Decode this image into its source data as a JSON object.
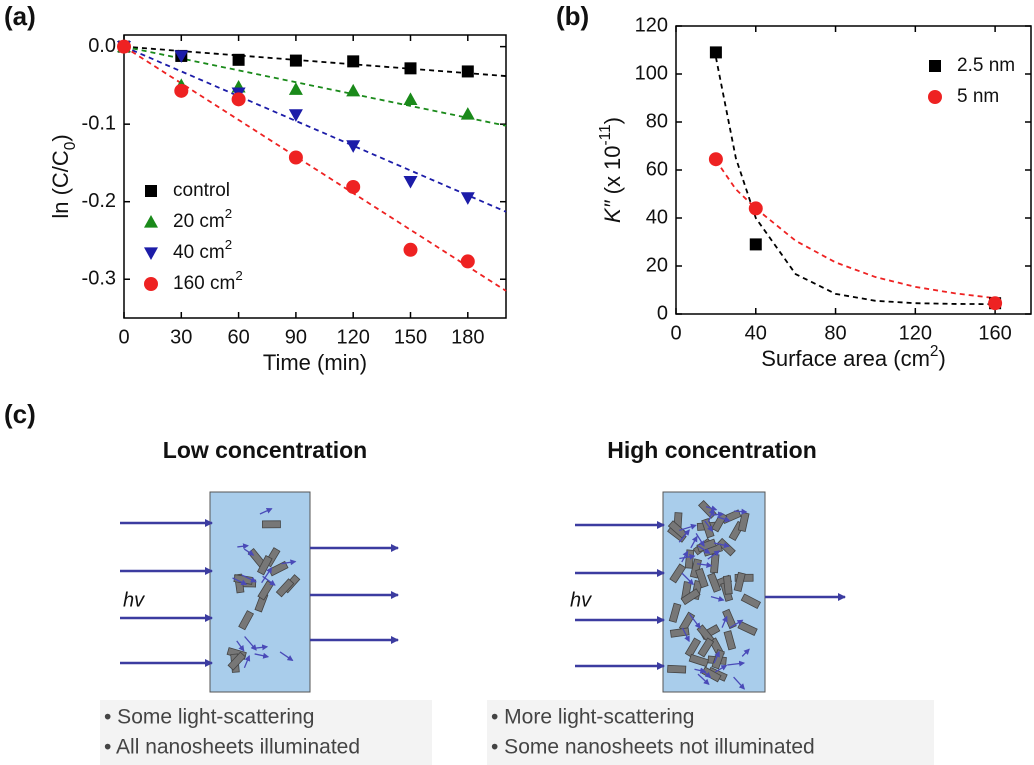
{
  "chart_data": [
    {
      "type": "scatter",
      "panel_label": "(a)",
      "x": [
        0,
        30,
        60,
        90,
        120,
        150,
        180
      ],
      "xlabel": [
        {
          "text": "Time (min)"
        }
      ],
      "ylabel": [
        {
          "text": "ln (C/C"
        },
        {
          "text": "0",
          "style": "sub"
        },
        {
          "text": ")"
        }
      ],
      "xlim": [
        0,
        200
      ],
      "xticks": [
        0,
        30,
        60,
        90,
        120,
        150,
        180
      ],
      "ylim": [
        -0.35,
        0.015
      ],
      "yticks": [
        {
          "value": 0,
          "label": "0.0"
        },
        -0.1,
        -0.2,
        -0.3
      ],
      "legend": "lower left",
      "fit_x": [
        0,
        200
      ],
      "series": [
        {
          "name": [
            {
              "text": "control"
            }
          ],
          "color": "#000000",
          "marker": "square",
          "values": [
            0,
            -0.012,
            -0.017,
            -0.018,
            -0.019,
            -0.028,
            -0.032
          ],
          "fit_values": [
            0,
            -0.038
          ]
        },
        {
          "name": [
            {
              "text": "20 cm"
            },
            {
              "text": "2",
              "style": "sup"
            }
          ],
          "color": "#1a8a1a",
          "marker": "triangle-up",
          "values": [
            0,
            -0.05,
            -0.052,
            -0.055,
            -0.057,
            -0.068,
            -0.087
          ],
          "fit_values": [
            0,
            -0.102
          ]
        },
        {
          "name": [
            {
              "text": "40 cm"
            },
            {
              "text": "2",
              "style": "sup"
            }
          ],
          "color": "#1c1ca8",
          "marker": "triangle-down",
          "values": [
            0,
            -0.012,
            -0.06,
            -0.088,
            -0.128,
            -0.174,
            -0.195
          ],
          "fit_values": [
            0,
            -0.213
          ]
        },
        {
          "name": [
            {
              "text": "160 cm"
            },
            {
              "text": "2",
              "style": "sup"
            }
          ],
          "color": "#ee2222",
          "marker": "circle",
          "values": [
            0,
            -0.057,
            -0.068,
            -0.143,
            -0.181,
            -0.262,
            -0.277
          ],
          "fit_values": [
            0,
            -0.315
          ]
        }
      ]
    },
    {
      "type": "scatter",
      "panel_label": "(b)",
      "x": [
        20,
        40,
        160
      ],
      "xlabel": [
        {
          "text": "Surface area (cm"
        },
        {
          "text": "2",
          "style": "sup"
        },
        {
          "text": ")"
        }
      ],
      "ylabel": [
        {
          "text": "K″",
          "style": "italic"
        },
        {
          "text": " (x 10"
        },
        {
          "text": "-11",
          "style": "sup"
        },
        {
          "text": ")"
        }
      ],
      "xlim": [
        0,
        178
      ],
      "xticks": [
        0,
        40,
        80,
        120,
        160
      ],
      "ylim": [
        0,
        120
      ],
      "yticks": [
        0,
        20,
        40,
        60,
        80,
        100,
        120
      ],
      "legend": "upper right",
      "fit_x": [
        20,
        30,
        40,
        60,
        80,
        100,
        120,
        140,
        160
      ],
      "series": [
        {
          "name": [
            {
              "text": "2.5 nm"
            }
          ],
          "color": "#000000",
          "marker": "square",
          "values": [
            109,
            29,
            4.5
          ],
          "fit_values": [
            107,
            65,
            40,
            16.6,
            8.4,
            5.5,
            4.5,
            4.2,
            4.1
          ]
        },
        {
          "name": [
            {
              "text": "5 nm"
            }
          ],
          "color": "#ee2222",
          "marker": "circle",
          "values": [
            64.5,
            44,
            4.5
          ],
          "fit_values": [
            64,
            52,
            44,
            30.5,
            21.5,
            15.4,
            11.3,
            8.6,
            6.6
          ]
        }
      ]
    }
  ],
  "diagram": {
    "panel_label": "(c)",
    "panels": [
      {
        "title": "Low concentration",
        "hv": "hv",
        "notes": [
          "• Some light-scattering",
          "• All nanosheets illuminated"
        ]
      },
      {
        "title": "High concentration",
        "hv": "hv",
        "notes": [
          "• More light-scattering",
          "• Some nanosheets not illuminated"
        ]
      }
    ]
  }
}
